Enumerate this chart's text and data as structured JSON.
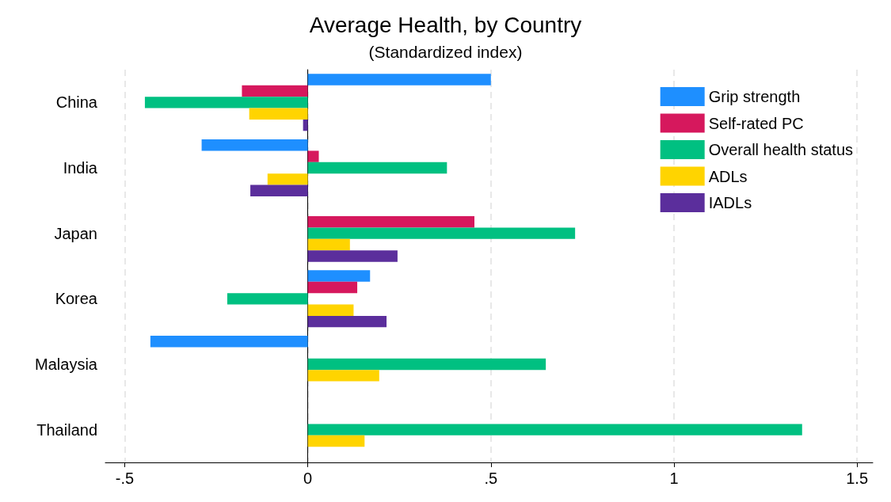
{
  "chart_data": {
    "type": "bar",
    "orientation": "horizontal",
    "title": "Average Health, by Country",
    "subtitle": "(Standardized index)",
    "categories": [
      "China",
      "India",
      "Japan",
      "Korea",
      "Malaysia",
      "Thailand"
    ],
    "series": [
      {
        "name": "Grip strength",
        "color": "#1e8fff",
        "values": [
          0.5,
          -0.29,
          null,
          0.17,
          -0.43,
          null
        ]
      },
      {
        "name": "Self-rated PC",
        "color": "#d6185d",
        "values": [
          -0.18,
          0.03,
          0.455,
          0.135,
          null,
          null
        ]
      },
      {
        "name": "Overall health status",
        "color": "#00c081",
        "values": [
          -0.445,
          0.38,
          0.73,
          -0.22,
          0.65,
          1.35
        ]
      },
      {
        "name": "ADLs",
        "color": "#ffd400",
        "values": [
          -0.16,
          -0.11,
          0.115,
          0.125,
          0.195,
          0.155
        ]
      },
      {
        "name": "IADLs",
        "color": "#5b2e9c",
        "values": [
          -0.013,
          -0.157,
          0.245,
          0.215,
          null,
          null
        ]
      }
    ],
    "xlim": [
      -0.553,
      1.543
    ],
    "xticks": [
      {
        "value": -0.5,
        "label": "-.5"
      },
      0,
      {
        "value": 0.5,
        "label": ".5"
      },
      1,
      1.5
    ],
    "grid": "x",
    "legend": "top right"
  }
}
